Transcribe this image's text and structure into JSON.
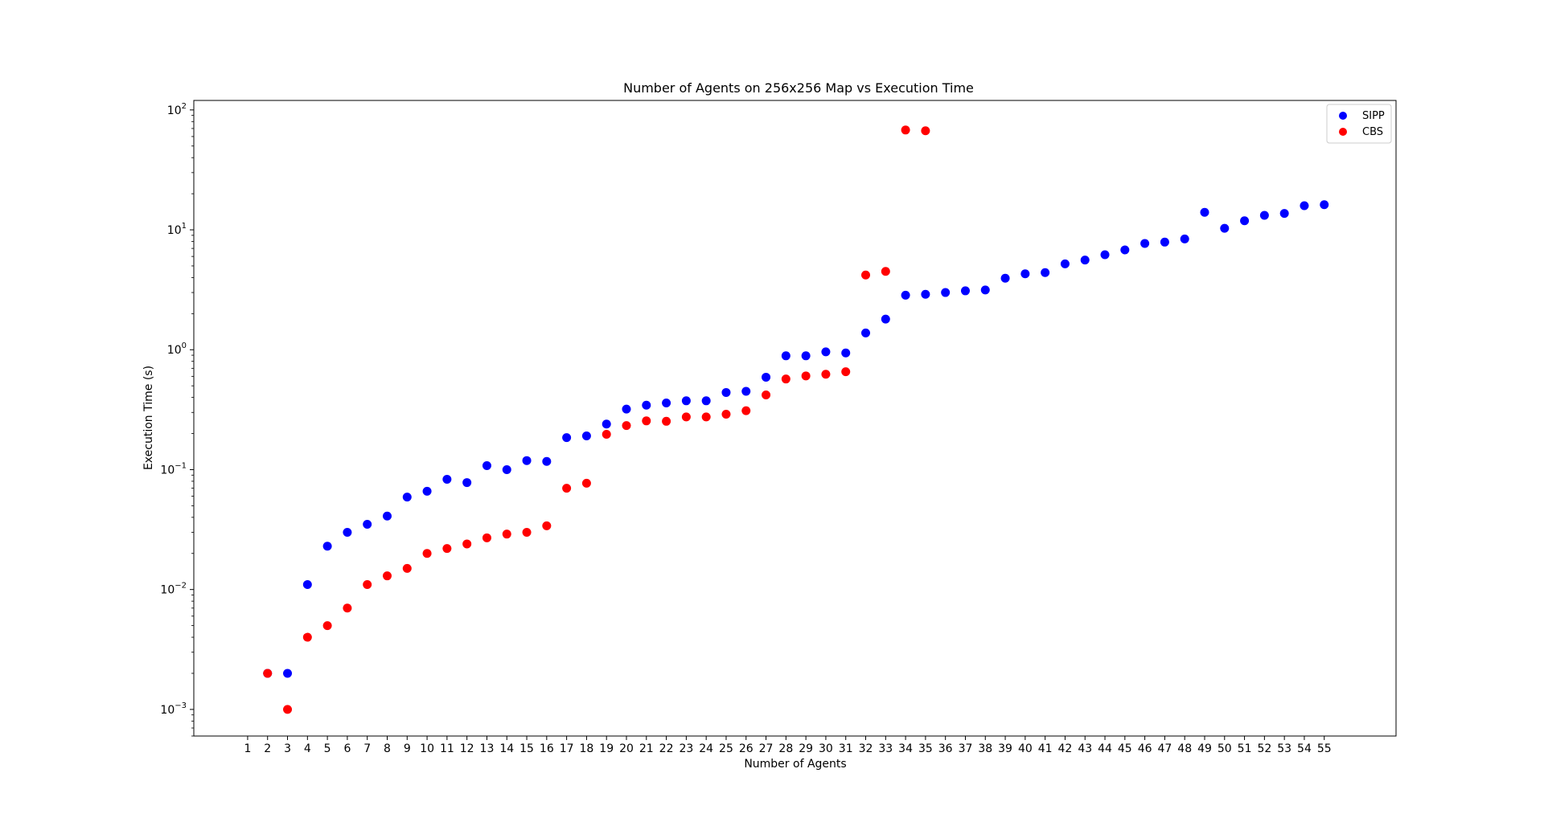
{
  "chart_data": {
    "type": "scatter",
    "title": "Number of Agents on 256x256 Map vs Execution Time",
    "xlabel": "Number of Agents",
    "ylabel": "Execution Time (s)",
    "yscale": "log",
    "ylim": [
      0.0006,
      120
    ],
    "xlim": [
      -1.7,
      58.6
    ],
    "x_ticks": [
      1,
      2,
      3,
      4,
      5,
      6,
      7,
      8,
      9,
      10,
      11,
      12,
      13,
      14,
      15,
      16,
      17,
      18,
      19,
      20,
      21,
      22,
      23,
      24,
      25,
      26,
      27,
      28,
      29,
      30,
      31,
      32,
      33,
      34,
      35,
      36,
      37,
      38,
      39,
      40,
      41,
      42,
      43,
      44,
      45,
      46,
      47,
      48,
      49,
      50,
      51,
      52,
      53,
      54,
      55
    ],
    "y_ticks": [
      {
        "value": 0.001,
        "base": "10",
        "exp": "−3"
      },
      {
        "value": 0.01,
        "base": "10",
        "exp": "−2"
      },
      {
        "value": 0.1,
        "base": "10",
        "exp": "−1"
      },
      {
        "value": 1,
        "base": "10",
        "exp": "0"
      },
      {
        "value": 10,
        "base": "10",
        "exp": "1"
      },
      {
        "value": 100,
        "base": "10",
        "exp": "2"
      }
    ],
    "grid": false,
    "legend_position": "top-right",
    "series": [
      {
        "name": "SIPP",
        "color": "#0000ff",
        "points": [
          [
            2,
            0.002
          ],
          [
            3,
            0.002
          ],
          [
            4,
            0.011
          ],
          [
            5,
            0.023
          ],
          [
            6,
            0.03
          ],
          [
            7,
            0.035
          ],
          [
            8,
            0.041
          ],
          [
            9,
            0.059
          ],
          [
            10,
            0.066
          ],
          [
            11,
            0.083
          ],
          [
            12,
            0.078
          ],
          [
            13,
            0.108
          ],
          [
            14,
            0.1
          ],
          [
            15,
            0.119
          ],
          [
            16,
            0.117
          ],
          [
            17,
            0.185
          ],
          [
            18,
            0.191
          ],
          [
            19,
            0.24
          ],
          [
            20,
            0.32
          ],
          [
            21,
            0.345
          ],
          [
            22,
            0.36
          ],
          [
            23,
            0.375
          ],
          [
            24,
            0.375
          ],
          [
            25,
            0.44
          ],
          [
            26,
            0.45
          ],
          [
            27,
            0.59
          ],
          [
            28,
            0.89
          ],
          [
            29,
            0.89
          ],
          [
            30,
            0.96
          ],
          [
            31,
            0.94
          ],
          [
            32,
            1.38
          ],
          [
            33,
            1.8
          ],
          [
            34,
            2.85
          ],
          [
            35,
            2.9
          ],
          [
            36,
            3.0
          ],
          [
            37,
            3.1
          ],
          [
            38,
            3.15
          ],
          [
            39,
            3.95
          ],
          [
            40,
            4.3
          ],
          [
            41,
            4.4
          ],
          [
            42,
            5.2
          ],
          [
            43,
            5.6
          ],
          [
            44,
            6.2
          ],
          [
            45,
            6.8
          ],
          [
            46,
            7.7
          ],
          [
            47,
            7.9
          ],
          [
            48,
            8.4
          ],
          [
            49,
            14.0
          ],
          [
            50,
            10.3
          ],
          [
            51,
            11.9
          ],
          [
            52,
            13.2
          ],
          [
            53,
            13.7
          ],
          [
            54,
            15.9
          ],
          [
            55,
            16.2
          ]
        ]
      },
      {
        "name": "CBS",
        "color": "#ff0000",
        "points": [
          [
            2,
            0.002
          ],
          [
            3,
            0.001
          ],
          [
            4,
            0.004
          ],
          [
            5,
            0.005
          ],
          [
            6,
            0.007
          ],
          [
            7,
            0.011
          ],
          [
            8,
            0.013
          ],
          [
            9,
            0.015
          ],
          [
            10,
            0.02
          ],
          [
            11,
            0.022
          ],
          [
            12,
            0.024
          ],
          [
            13,
            0.027
          ],
          [
            14,
            0.029
          ],
          [
            15,
            0.03
          ],
          [
            16,
            0.034
          ],
          [
            17,
            0.07
          ],
          [
            18,
            0.077
          ],
          [
            19,
            0.197
          ],
          [
            20,
            0.233
          ],
          [
            21,
            0.255
          ],
          [
            22,
            0.253
          ],
          [
            23,
            0.275
          ],
          [
            24,
            0.275
          ],
          [
            25,
            0.29
          ],
          [
            26,
            0.31
          ],
          [
            27,
            0.42
          ],
          [
            28,
            0.57
          ],
          [
            29,
            0.605
          ],
          [
            30,
            0.625
          ],
          [
            31,
            0.655
          ],
          [
            32,
            4.2
          ],
          [
            33,
            4.5
          ],
          [
            34,
            68.0
          ],
          [
            35,
            67.0
          ]
        ]
      }
    ]
  }
}
